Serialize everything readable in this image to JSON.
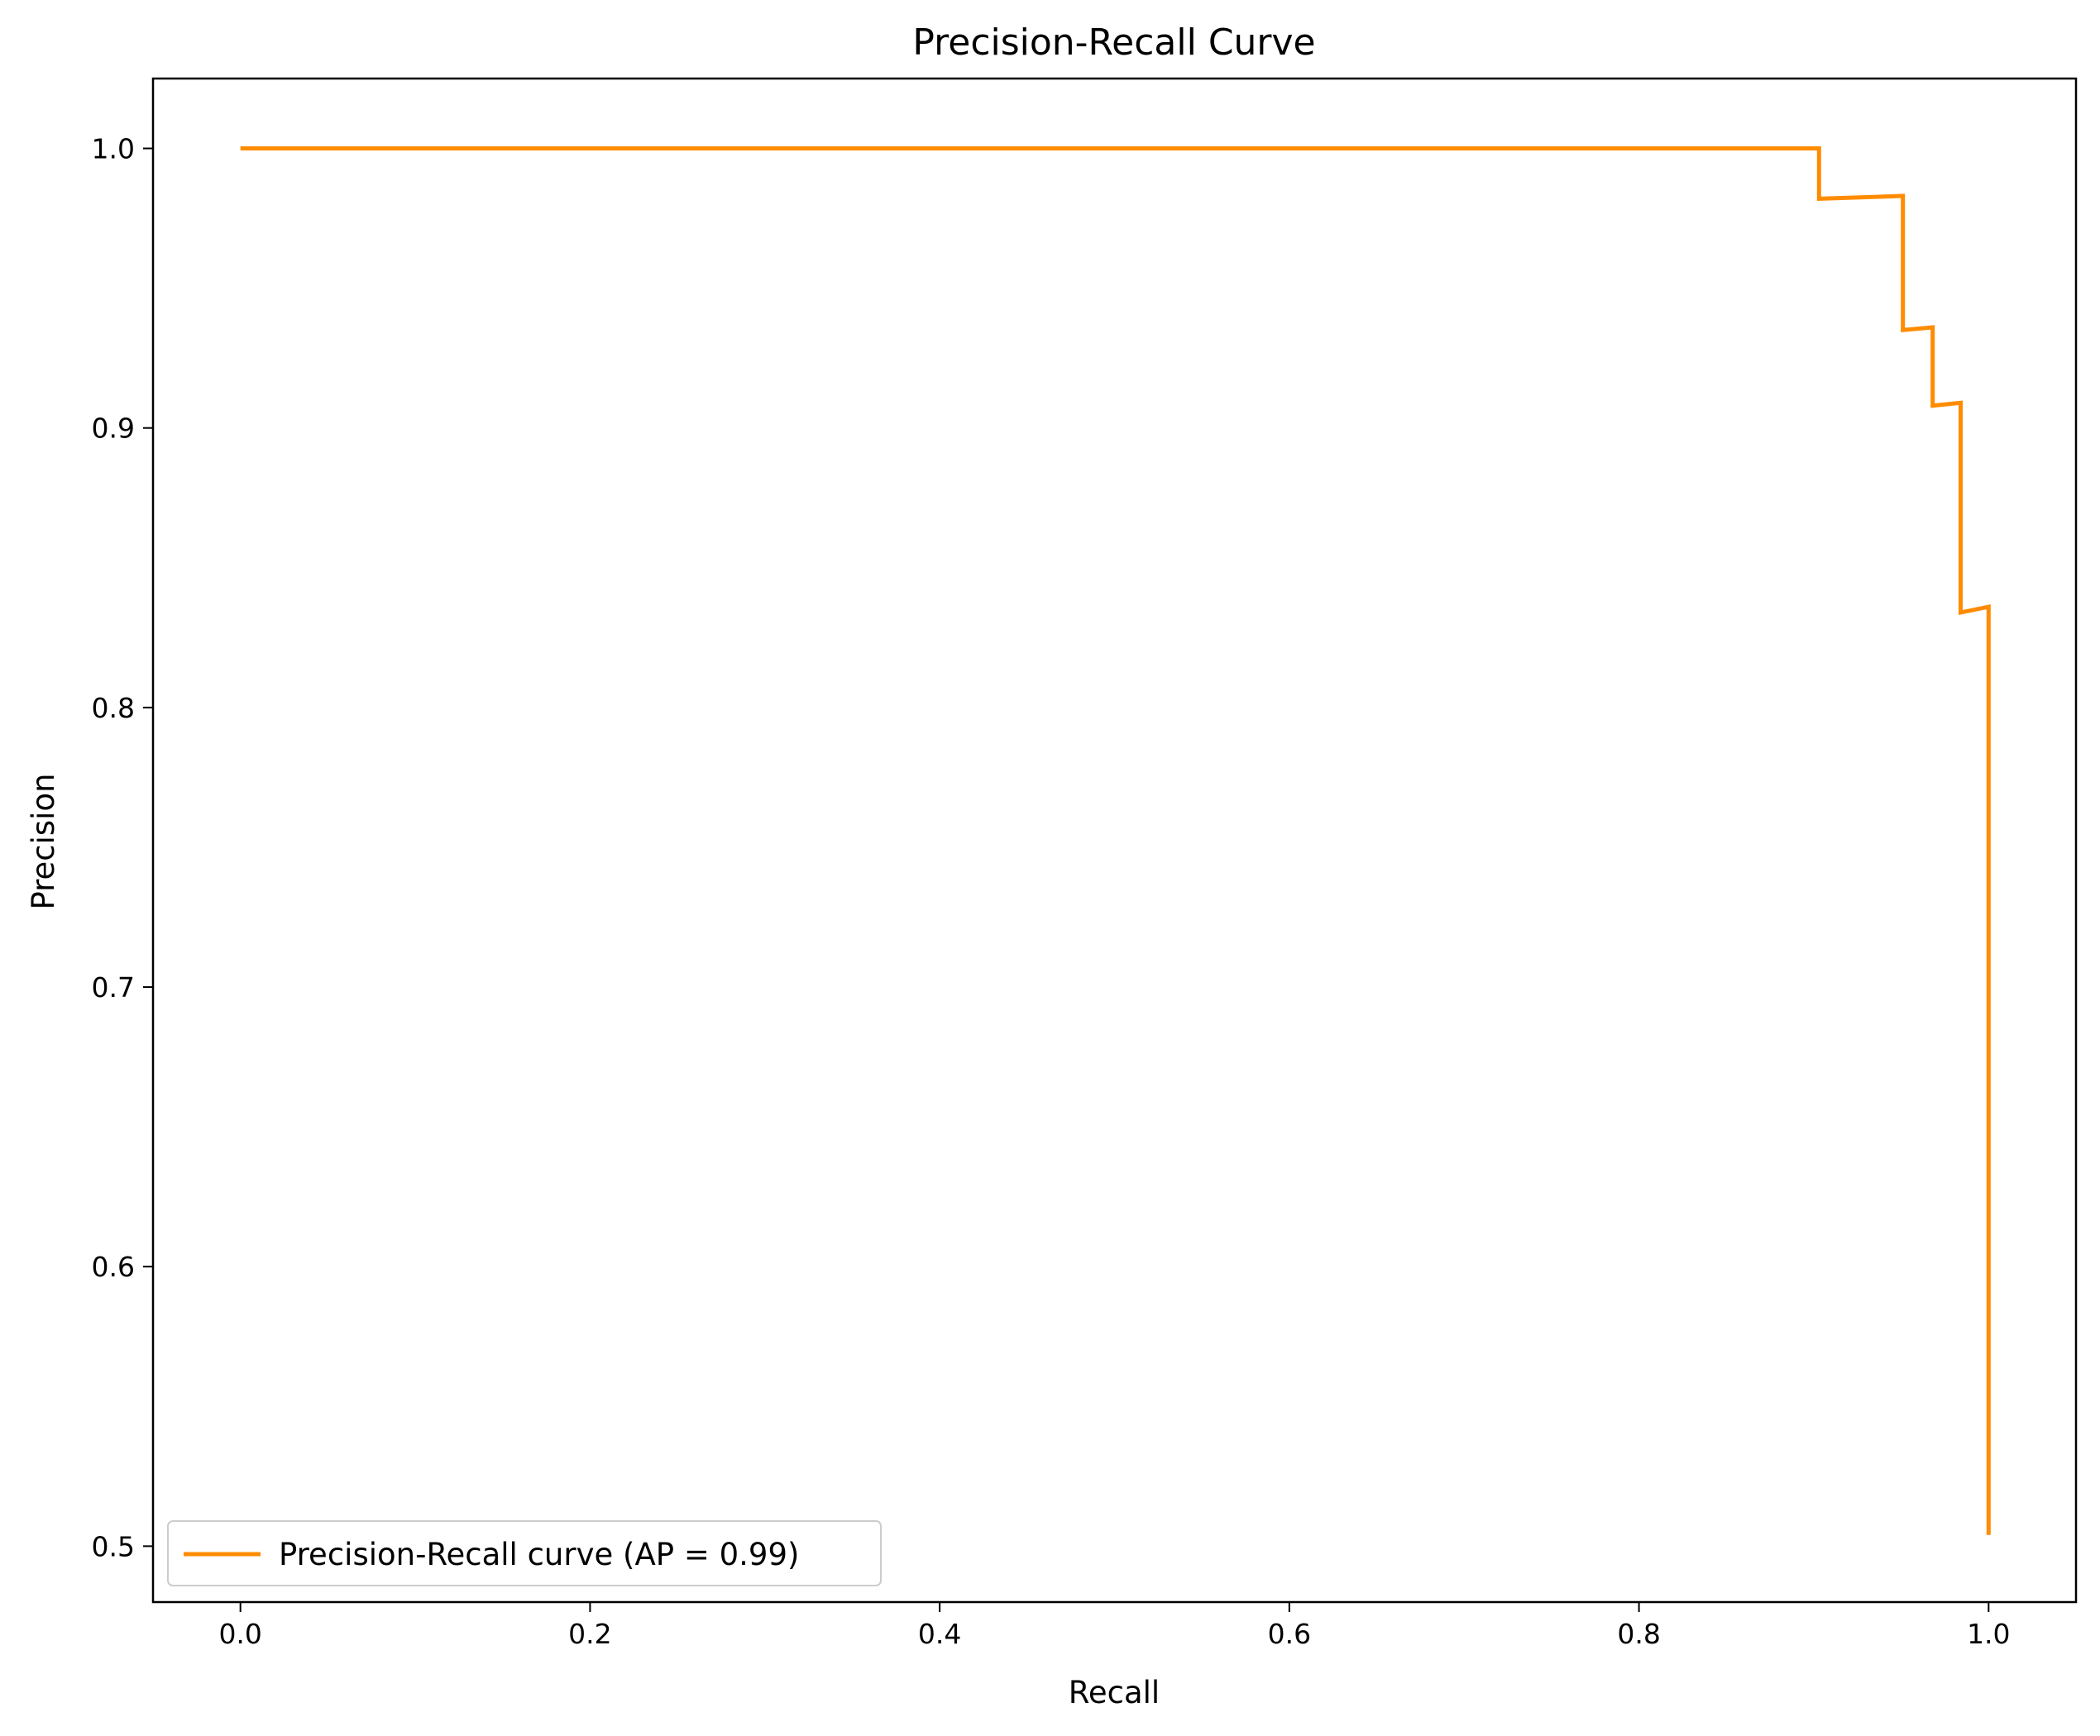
{
  "chart_data": {
    "type": "line",
    "title": "Precision-Recall Curve",
    "xlabel": "Recall",
    "ylabel": "Precision",
    "xlim": [
      -0.05,
      1.05
    ],
    "ylim": [
      0.48,
      1.025
    ],
    "xticks": [
      0.0,
      0.2,
      0.4,
      0.6,
      0.8,
      1.0
    ],
    "xtick_labels": [
      "0.0",
      "0.2",
      "0.4",
      "0.6",
      "0.8",
      "1.0"
    ],
    "yticks": [
      0.5,
      0.6,
      0.7,
      0.8,
      0.9,
      1.0
    ],
    "ytick_labels": [
      "0.5",
      "0.6",
      "0.7",
      "0.8",
      "0.9",
      "1.0"
    ],
    "grid": false,
    "legend_position": "lower-left",
    "series": [
      {
        "name": "Precision-Recall curve (AP = 0.99)",
        "color": "#ff8c00",
        "x": [
          0.0,
          0.903,
          0.903,
          0.951,
          0.951,
          0.968,
          0.968,
          0.984,
          0.984,
          1.0,
          1.0
        ],
        "y": [
          1.0,
          1.0,
          0.982,
          0.983,
          0.935,
          0.936,
          0.908,
          0.909,
          0.834,
          0.836,
          0.504
        ]
      }
    ]
  }
}
